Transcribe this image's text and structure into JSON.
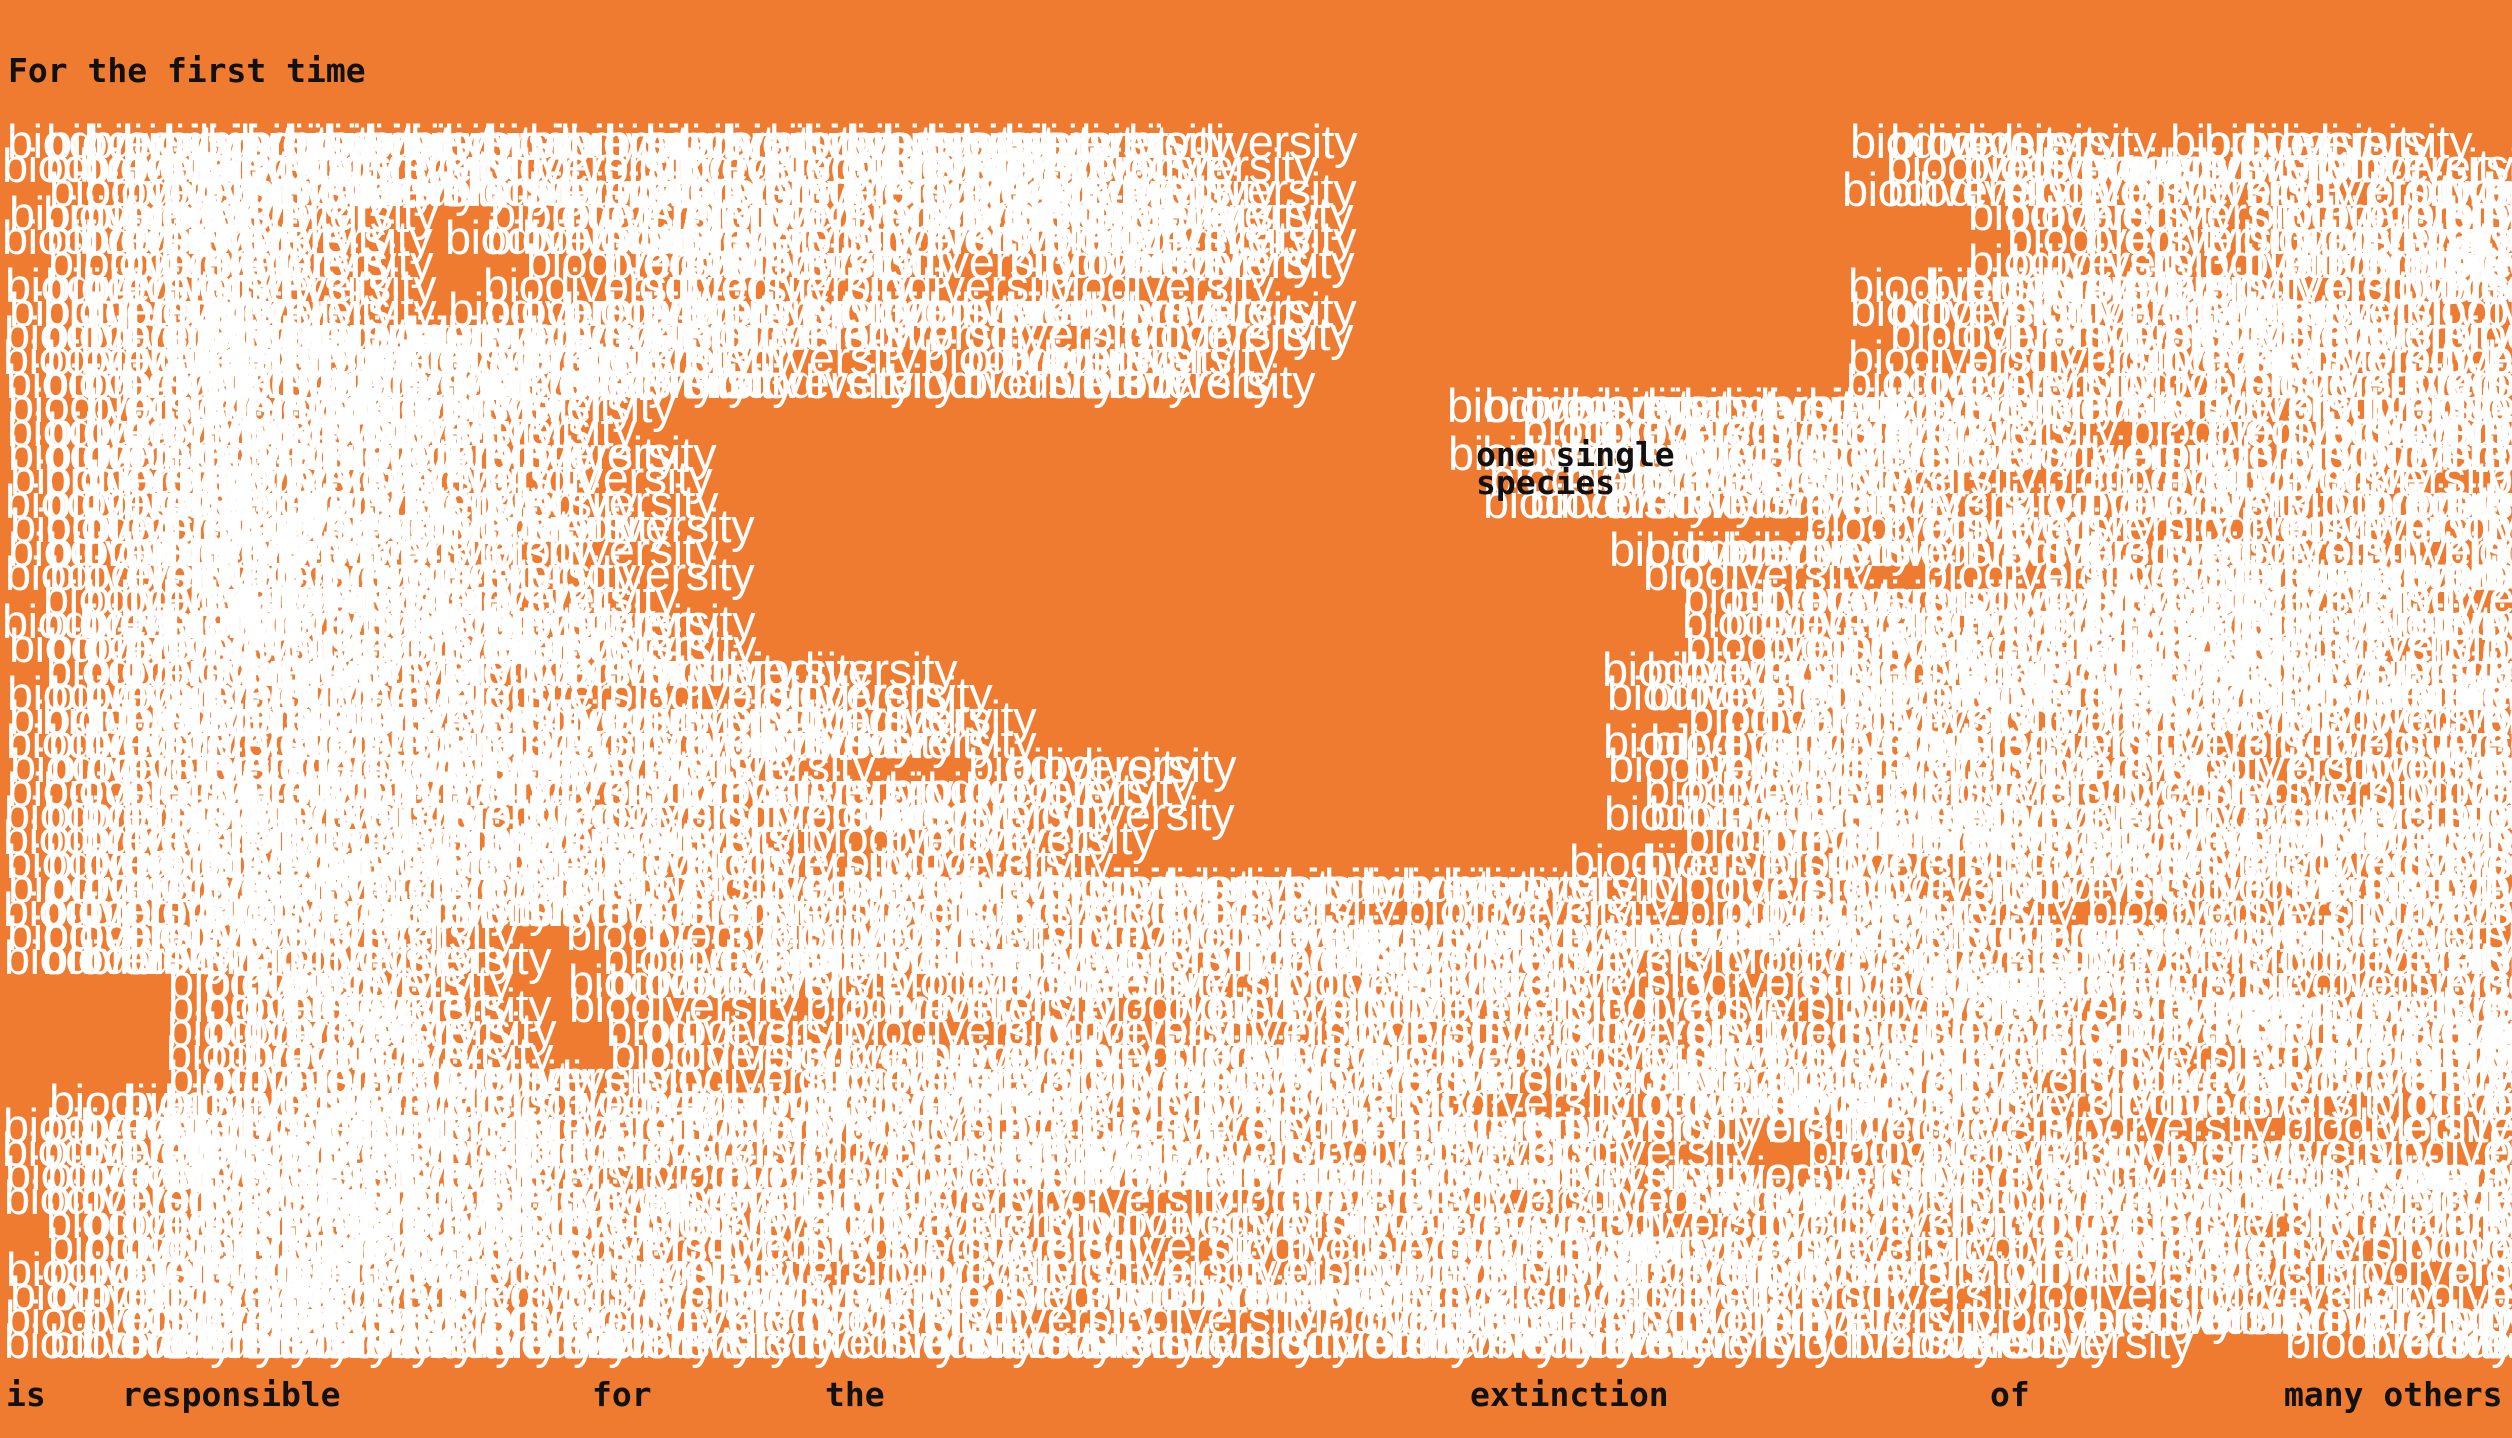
{
  "colors": {
    "background": "#EF7B31",
    "word": "#FFFFFF",
    "text": "#111111"
  },
  "heading": "For the first time",
  "callout": {
    "line1": "one single",
    "line2": "species"
  },
  "tiled_word": "biodiversity",
  "footer": {
    "w1": "is",
    "w2": "responsible",
    "w3": "for",
    "w4": "the",
    "w5": "extinction",
    "w6": "of",
    "w7": "many others"
  }
}
